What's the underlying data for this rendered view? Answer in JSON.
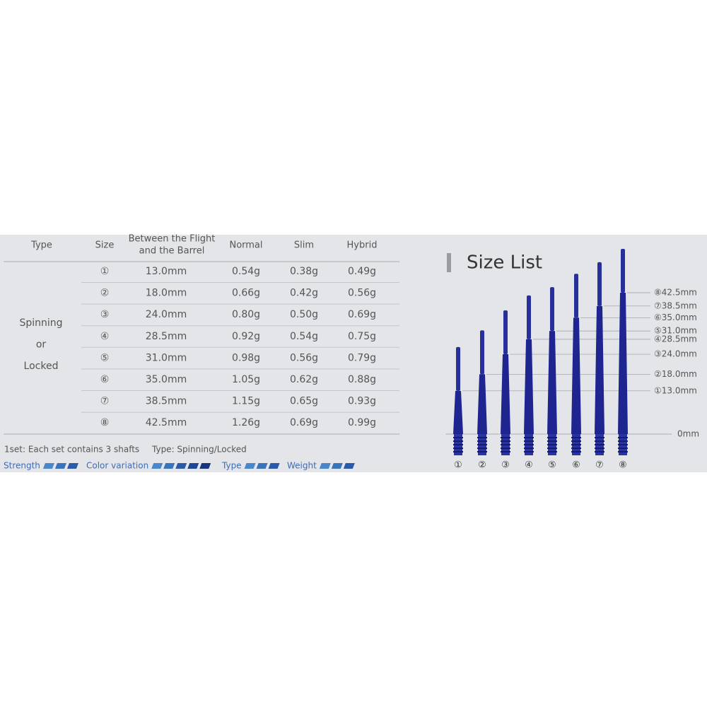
{
  "table": {
    "headers": [
      "Type",
      "Size",
      [
        "Between the Flight",
        "and the Barrel"
      ],
      "Normal",
      "Slim",
      "Hybrid"
    ],
    "type_lines": [
      "Spinning",
      "or",
      "Locked"
    ],
    "rows": [
      [
        "①",
        "13.0mm",
        "0.54g",
        "0.38g",
        "0.49g"
      ],
      [
        "②",
        "18.0mm",
        "0.66g",
        "0.42g",
        "0.56g"
      ],
      [
        "③",
        "24.0mm",
        "0.80g",
        "0.50g",
        "0.69g"
      ],
      [
        "④",
        "28.5mm",
        "0.92g",
        "0.54g",
        "0.75g"
      ],
      [
        "⑤",
        "31.0mm",
        "0.98g",
        "0.56g",
        "0.79g"
      ],
      [
        "⑥",
        "35.0mm",
        "1.05g",
        "0.62g",
        "0.88g"
      ],
      [
        "⑦",
        "38.5mm",
        "1.15g",
        "0.65g",
        "0.93g"
      ],
      [
        "⑧",
        "42.5mm",
        "1.26g",
        "0.69g",
        "0.99g"
      ]
    ]
  },
  "notes": [
    "1set: Each set contains 3 shafts",
    "Type: Spinning/Locked"
  ],
  "ratings": [
    {
      "label": "Strength",
      "level": 3
    },
    {
      "label": "Color variation",
      "level": 5
    },
    {
      "label": "Type",
      "level": 3
    },
    {
      "label": "Weight",
      "level": 3
    }
  ],
  "size_list": {
    "title": "Size List",
    "ylim": [
      0,
      42.5
    ],
    "ticks": [
      {
        "value": 42.5,
        "label": "⑧42.5mm"
      },
      {
        "value": 38.5,
        "label": "⑦38.5mm"
      },
      {
        "value": 35.0,
        "label": "⑥35.0mm"
      },
      {
        "value": 31.0,
        "label": "⑤31.0mm"
      },
      {
        "value": 28.5,
        "label": "④28.5mm"
      },
      {
        "value": 24.0,
        "label": "③24.0mm"
      },
      {
        "value": 18.0,
        "label": "②18.0mm"
      },
      {
        "value": 13.0,
        "label": "①13.0mm"
      },
      {
        "value": 0,
        "label": "0mm"
      }
    ],
    "shaft_labels": [
      "①",
      "②",
      "③",
      "④",
      "⑤",
      "⑥",
      "⑦",
      "⑧"
    ]
  }
}
